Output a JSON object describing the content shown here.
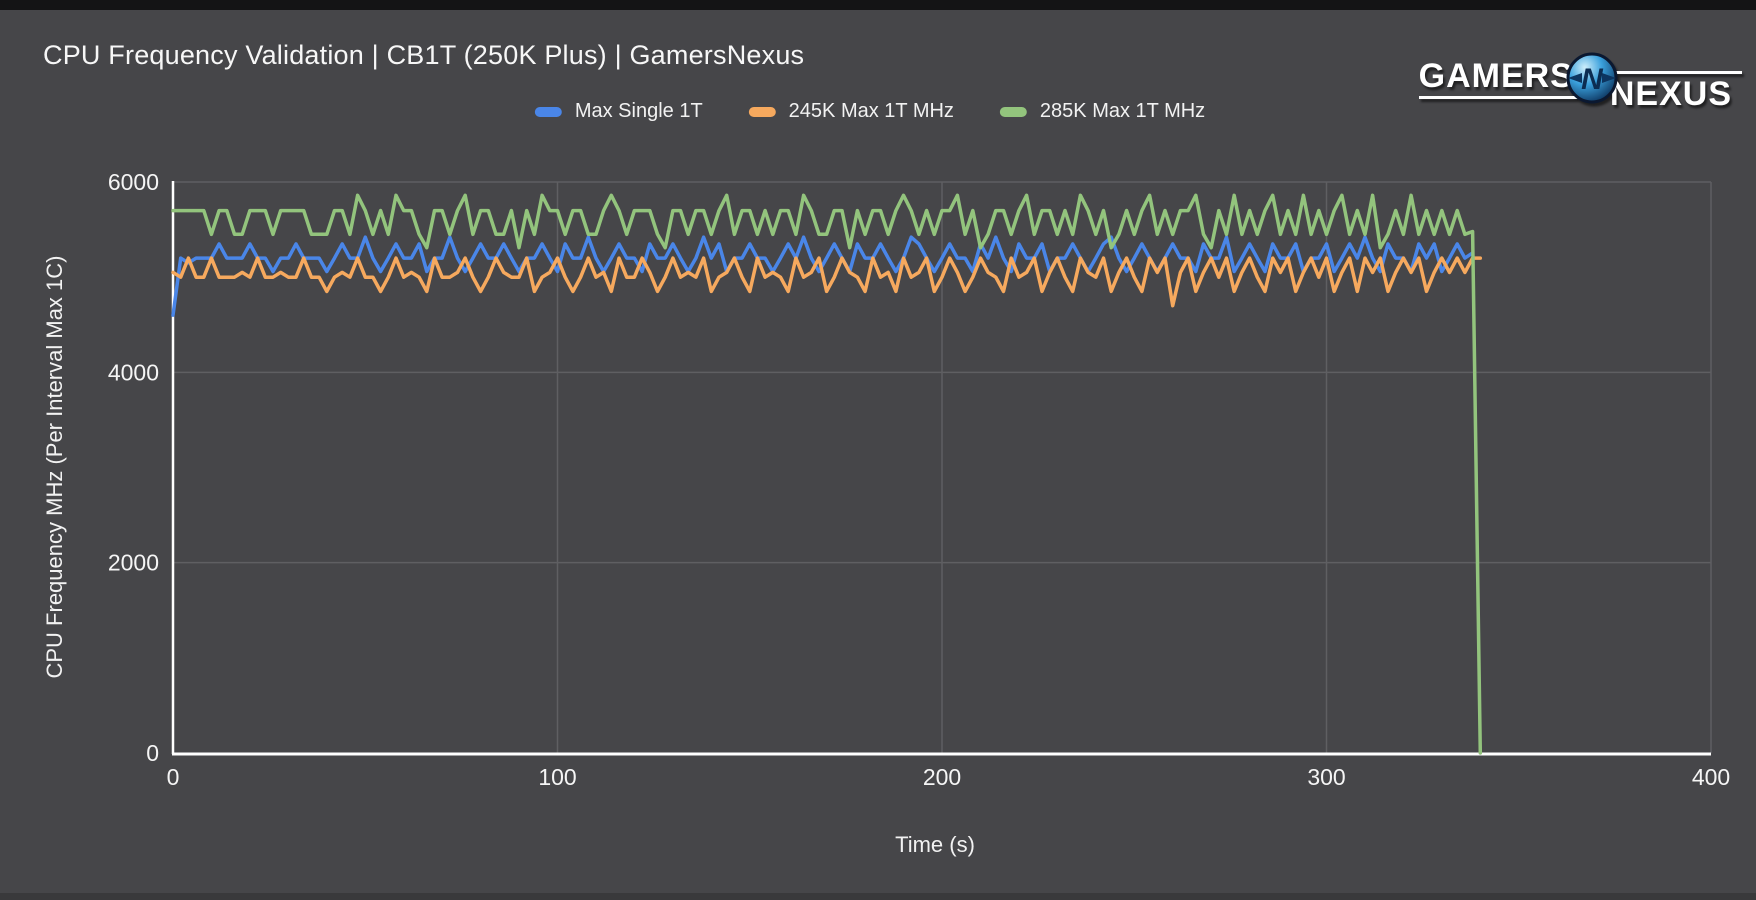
{
  "logo": {
    "gamers": "GAMERS",
    "nexus": "NEXUS"
  },
  "colors": {
    "background": "#464649",
    "grid": "#5f5f62",
    "axis": "#ffffff",
    "tick_text": "#f5f5f5",
    "series_blue": "#4a86e8",
    "series_orange": "#f6a95e",
    "series_green": "#93c47d"
  },
  "chart_data": {
    "type": "line",
    "title": "CPU Frequency Validation | CB1T (250K Plus) | GamersNexus",
    "xlabel": "Time (s)",
    "ylabel": "CPU Frequency MHz (Per Interval Max 1C)",
    "xlim": [
      0,
      400
    ],
    "ylim": [
      0,
      6000
    ],
    "x_ticks": [
      0,
      100,
      200,
      300,
      400
    ],
    "y_ticks": [
      0,
      2000,
      4000,
      6000
    ],
    "grid": true,
    "legend_position": "top",
    "x_start": 0,
    "x_step": 2,
    "series": [
      {
        "name": "Max Single 1T",
        "color": "#4a86e8",
        "values": [
          4600,
          5200,
          5150,
          5200,
          5200,
          5200,
          5350,
          5200,
          5200,
          5200,
          5350,
          5200,
          5200,
          5060,
          5200,
          5200,
          5350,
          5200,
          5200,
          5200,
          5060,
          5200,
          5350,
          5200,
          5200,
          5420,
          5200,
          5060,
          5200,
          5350,
          5200,
          5200,
          5350,
          5060,
          5200,
          5200,
          5420,
          5200,
          5060,
          5200,
          5350,
          5200,
          5200,
          5350,
          5200,
          5060,
          5200,
          5200,
          5350,
          5200,
          5060,
          5350,
          5200,
          5200,
          5420,
          5200,
          5060,
          5200,
          5350,
          5200,
          5200,
          5060,
          5350,
          5200,
          5200,
          5350,
          5200,
          5060,
          5200,
          5420,
          5200,
          5350,
          5060,
          5200,
          5200,
          5350,
          5200,
          5200,
          5060,
          5200,
          5350,
          5200,
          5420,
          5200,
          5060,
          5200,
          5350,
          5200,
          5060,
          5350,
          5200,
          5200,
          5350,
          5200,
          5060,
          5200,
          5420,
          5350,
          5200,
          5060,
          5200,
          5350,
          5200,
          5200,
          5060,
          5350,
          5200,
          5420,
          5200,
          5060,
          5350,
          5200,
          5200,
          5350,
          5060,
          5200,
          5200,
          5350,
          5200,
          5060,
          5200,
          5350,
          5420,
          5200,
          5060,
          5200,
          5350,
          5200,
          5060,
          5200,
          5350,
          5200,
          5200,
          5060,
          5350,
          5200,
          5200,
          5420,
          5060,
          5200,
          5350,
          5200,
          5060,
          5350,
          5200,
          5200,
          5350,
          5060,
          5200,
          5200,
          5350,
          5060,
          5200,
          5350,
          5200,
          5420,
          5200,
          5060,
          5350,
          5200,
          5200,
          5060,
          5350,
          5200,
          5350,
          5060,
          5200,
          5350,
          5200,
          5255
        ]
      },
      {
        "name": "245K Max 1T MHz",
        "color": "#f6a95e",
        "values": [
          5050,
          5000,
          5200,
          5000,
          5000,
          5200,
          5000,
          5000,
          5000,
          5050,
          5000,
          5200,
          5000,
          5000,
          5050,
          5000,
          5000,
          5200,
          5000,
          5000,
          4850,
          5000,
          5050,
          5000,
          5200,
          5000,
          5000,
          4850,
          5000,
          5200,
          5000,
          5050,
          5000,
          4850,
          5200,
          5000,
          5000,
          5050,
          5200,
          5000,
          4850,
          5000,
          5200,
          5050,
          5000,
          5000,
          5200,
          4850,
          5000,
          5050,
          5200,
          5000,
          4850,
          5000,
          5200,
          5000,
          5050,
          4850,
          5200,
          5000,
          5000,
          5200,
          5050,
          4850,
          5000,
          5200,
          5000,
          5050,
          5000,
          5200,
          4850,
          5000,
          5050,
          5200,
          5000,
          4850,
          5200,
          5000,
          5050,
          5000,
          4850,
          5200,
          5000,
          5050,
          5200,
          4850,
          5000,
          5200,
          5050,
          5000,
          4850,
          5200,
          5000,
          5050,
          4850,
          5200,
          5000,
          5050,
          5200,
          4850,
          5000,
          5200,
          5050,
          4850,
          5000,
          5200,
          5050,
          5000,
          4850,
          5200,
          5000,
          5050,
          5200,
          4850,
          5050,
          5200,
          5000,
          4850,
          5200,
          5050,
          5000,
          5200,
          4850,
          5050,
          5200,
          5000,
          4850,
          5200,
          5050,
          5200,
          4700,
          5050,
          5200,
          4850,
          5050,
          5200,
          5000,
          5200,
          4850,
          5050,
          5200,
          5000,
          4850,
          5200,
          5050,
          5200,
          4850,
          5050,
          5200,
          5000,
          5200,
          4850,
          5050,
          5200,
          4850,
          5200,
          5050,
          5200,
          4850,
          5050,
          5200,
          5050,
          5200,
          4850,
          5050,
          5200,
          5050,
          5200,
          5050,
          5200,
          5200
        ]
      },
      {
        "name": "285K Max 1T MHz",
        "color": "#93c47d",
        "values": [
          5700,
          5700,
          5700,
          5700,
          5700,
          5450,
          5700,
          5700,
          5450,
          5450,
          5700,
          5700,
          5700,
          5450,
          5700,
          5700,
          5700,
          5700,
          5450,
          5450,
          5450,
          5700,
          5700,
          5450,
          5860,
          5700,
          5450,
          5700,
          5450,
          5860,
          5700,
          5700,
          5450,
          5310,
          5700,
          5700,
          5450,
          5700,
          5860,
          5450,
          5700,
          5700,
          5450,
          5450,
          5700,
          5310,
          5700,
          5450,
          5860,
          5700,
          5700,
          5450,
          5700,
          5700,
          5450,
          5450,
          5700,
          5860,
          5700,
          5450,
          5700,
          5700,
          5700,
          5450,
          5310,
          5700,
          5700,
          5450,
          5700,
          5700,
          5450,
          5700,
          5860,
          5450,
          5700,
          5700,
          5450,
          5700,
          5450,
          5700,
          5700,
          5450,
          5860,
          5700,
          5450,
          5450,
          5700,
          5700,
          5310,
          5700,
          5450,
          5700,
          5700,
          5450,
          5700,
          5860,
          5700,
          5450,
          5700,
          5450,
          5700,
          5700,
          5860,
          5450,
          5700,
          5310,
          5450,
          5700,
          5700,
          5450,
          5700,
          5860,
          5450,
          5700,
          5700,
          5450,
          5700,
          5450,
          5860,
          5700,
          5450,
          5700,
          5310,
          5450,
          5700,
          5450,
          5700,
          5860,
          5450,
          5700,
          5450,
          5700,
          5700,
          5860,
          5450,
          5310,
          5700,
          5450,
          5860,
          5450,
          5700,
          5450,
          5700,
          5860,
          5450,
          5700,
          5450,
          5860,
          5450,
          5700,
          5450,
          5700,
          5860,
          5450,
          5700,
          5450,
          5860,
          5310,
          5450,
          5700,
          5450,
          5860,
          5450,
          5700,
          5450,
          5700,
          5450,
          5700,
          5450,
          5480,
          0
        ]
      }
    ]
  }
}
